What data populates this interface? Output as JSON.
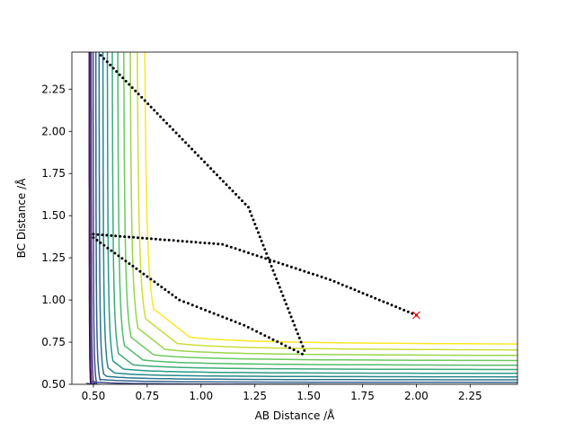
{
  "chart_data": {
    "type": "contour",
    "title": "",
    "xlabel": "AB Distance /Å",
    "ylabel": "BC Distance /Å",
    "xlim": [
      0.4,
      2.47
    ],
    "ylim": [
      0.5,
      2.47
    ],
    "xticks": [
      0.5,
      0.75,
      1.0,
      1.25,
      1.5,
      1.75,
      2.0,
      2.25
    ],
    "yticks": [
      0.5,
      0.75,
      1.0,
      1.25,
      1.5,
      1.75,
      2.0,
      2.25
    ],
    "xtick_labels": [
      "0.50",
      "0.75",
      "1.00",
      "1.25",
      "1.50",
      "1.75",
      "2.00",
      "2.25"
    ],
    "ytick_labels": [
      "0.50",
      "0.75",
      "1.00",
      "1.25",
      "1.50",
      "1.75",
      "2.00",
      "2.25"
    ],
    "colormap": "viridis",
    "contour_levels": 14,
    "trajectory": {
      "style": "dotted",
      "color": "#000000",
      "points": [
        [
          2.0,
          0.91
        ],
        [
          1.6,
          1.12
        ],
        [
          1.1,
          1.33
        ],
        [
          0.5,
          1.39
        ],
        [
          0.5,
          1.37
        ],
        [
          0.9,
          1.0
        ],
        [
          1.2,
          0.85
        ],
        [
          1.47,
          0.68
        ],
        [
          1.48,
          0.7
        ],
        [
          1.22,
          1.55
        ],
        [
          0.52,
          2.47
        ]
      ]
    },
    "start_marker": {
      "x": 2.0,
      "y": 0.91,
      "symbol": "x",
      "color": "#ff0000"
    }
  }
}
